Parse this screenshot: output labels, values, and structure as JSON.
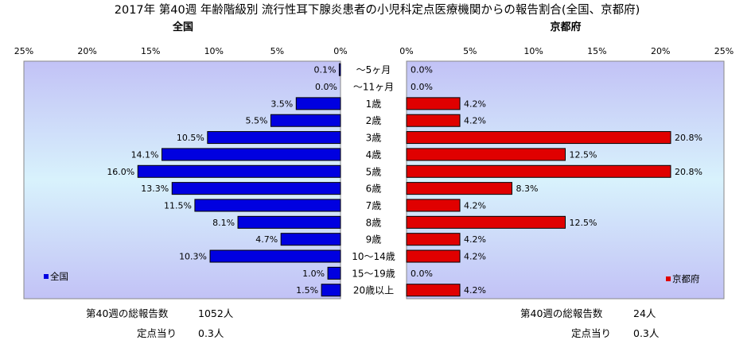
{
  "chart_data": {
    "type": "bar",
    "title": "2017年 第40週 年齢階級別 流行性耳下腺炎患者の小児科定点医療機関からの報告割合(全国、京都府)",
    "categories": [
      "～5ヶ月",
      "～11ヶ月",
      "1歳",
      "2歳",
      "3歳",
      "4歳",
      "5歳",
      "6歳",
      "7歳",
      "8歳",
      "9歳",
      "10～14歳",
      "15～19歳",
      "20歳以上"
    ],
    "xlim": [
      0,
      25
    ],
    "ticks": [
      "0%",
      "5%",
      "10%",
      "15%",
      "20%",
      "25%"
    ],
    "grid": false,
    "panels": [
      {
        "name": "全国",
        "legend": "全国",
        "legend_position": "bottom-left",
        "color": "#0000e0",
        "values": [
          0.1,
          0.0,
          3.5,
          5.5,
          10.5,
          14.1,
          16.0,
          13.3,
          11.5,
          8.1,
          4.7,
          10.3,
          1.0,
          1.5
        ],
        "labels": [
          "0.1%",
          "0.0%",
          "3.5%",
          "5.5%",
          "10.5%",
          "14.1%",
          "16.0%",
          "13.3%",
          "11.5%",
          "8.1%",
          "4.7%",
          "10.3%",
          "1.0%",
          "1.5%"
        ],
        "stats": {
          "total_label": "第40週の総報告数",
          "total_value": "1052人",
          "per_label": "定点当り",
          "per_value": "0.3人"
        }
      },
      {
        "name": "京都府",
        "legend": "京都府",
        "legend_position": "bottom-right",
        "color": "#e00000",
        "values": [
          0.0,
          0.0,
          4.2,
          4.2,
          20.8,
          12.5,
          20.8,
          8.3,
          4.2,
          12.5,
          4.2,
          4.2,
          0.0,
          4.2
        ],
        "labels": [
          "0.0%",
          "0.0%",
          "4.2%",
          "4.2%",
          "20.8%",
          "12.5%",
          "20.8%",
          "8.3%",
          "4.2%",
          "12.5%",
          "4.2%",
          "4.2%",
          "0.0%",
          "4.2%"
        ],
        "stats": {
          "total_label": "第40週の総報告数",
          "total_value": "24人",
          "per_label": "定点当り",
          "per_value": "0.3人"
        }
      }
    ]
  }
}
